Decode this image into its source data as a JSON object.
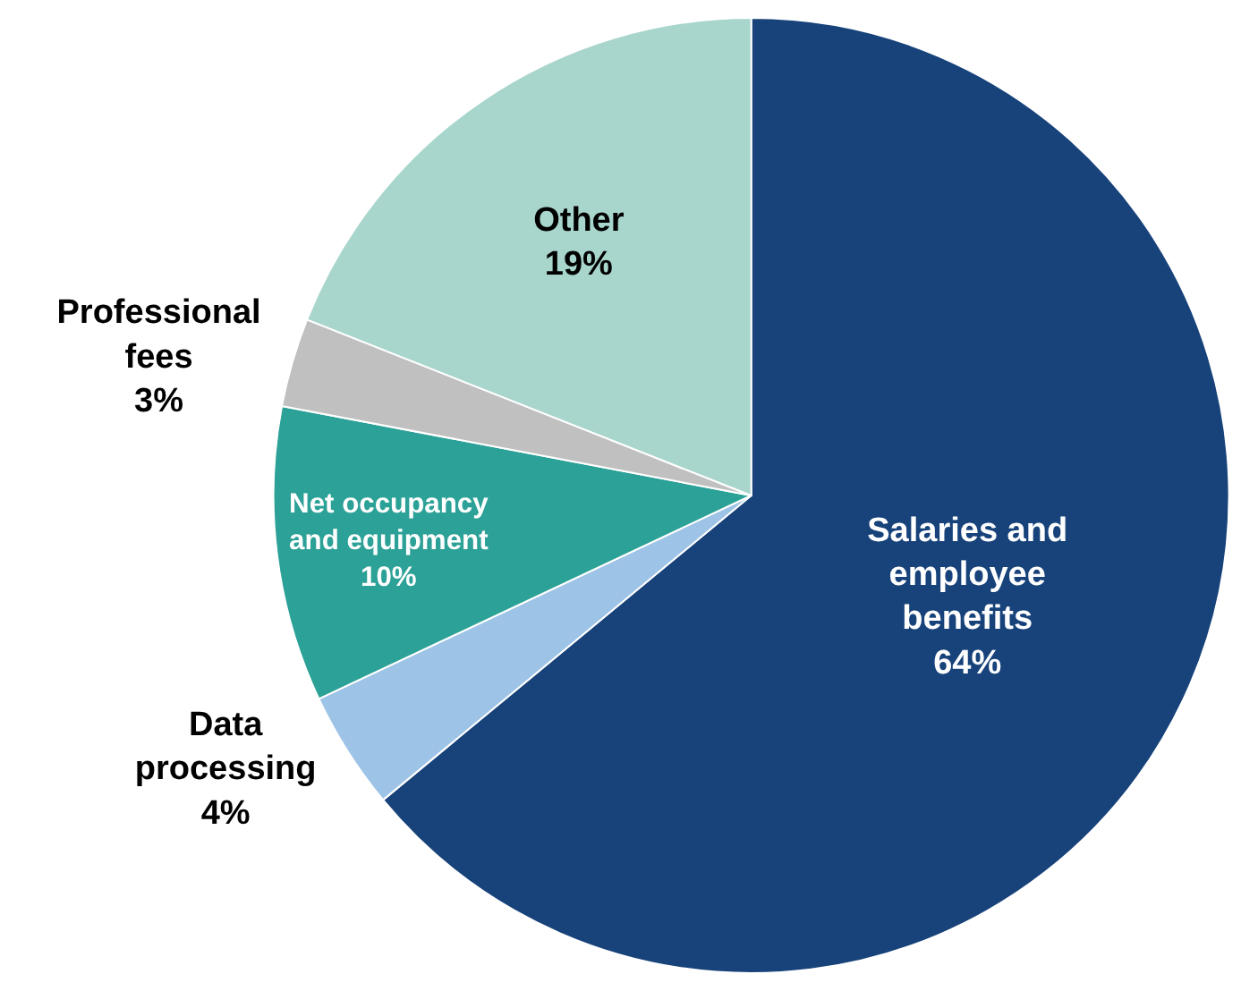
{
  "chart_data": {
    "type": "pie",
    "categories": [
      "Salaries and employee benefits",
      "Data processing",
      "Net occupancy and equipment",
      "Professional fees",
      "Other"
    ],
    "values": [
      64,
      4,
      10,
      3,
      19
    ],
    "colors": [
      "#17427a",
      "#9dc3e6",
      "#2ca197",
      "#c0c0c0",
      "#a8d5cc"
    ],
    "value_labels": [
      "64%",
      "4%",
      "10%",
      "3%",
      "19%"
    ],
    "legend": false
  }
}
